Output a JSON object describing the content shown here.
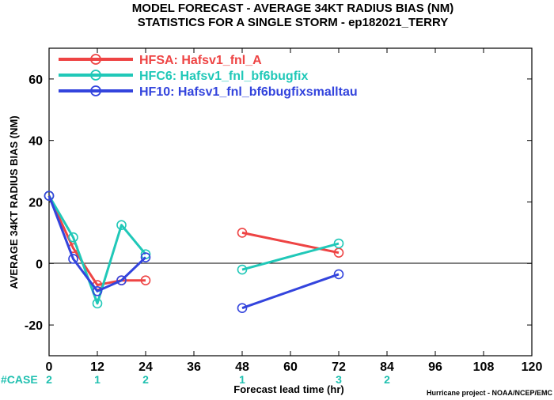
{
  "chart_data": {
    "type": "line",
    "title_line1": "MODEL FORECAST - AVERAGE 34KT RADIUS BIAS (NM)",
    "title_line2": "STATISTICS FOR A SINGLE STORM - ep182021_TERRY",
    "xlabel": "Forecast lead time (hr)",
    "ylabel": "AVERAGE 34KT RADIUS BIAS (NM)",
    "xlim": [
      0,
      120
    ],
    "ylim": [
      -30,
      70
    ],
    "x_ticks": [
      0,
      12,
      24,
      36,
      48,
      60,
      72,
      84,
      96,
      108,
      120
    ],
    "y_ticks": [
      -20,
      0,
      20,
      40,
      60
    ],
    "zero_line": true,
    "legend_placement": "top-left",
    "series": [
      {
        "name": "HFSA: Hafsv1_fnl_A",
        "color": "#ee4444",
        "segments": [
          [
            [
              0,
              22
            ],
            [
              6,
              5
            ],
            [
              12,
              -7
            ],
            [
              18,
              -5.5
            ],
            [
              24,
              -5.5
            ]
          ],
          [
            [
              48,
              10
            ],
            [
              72,
              3.5
            ]
          ]
        ]
      },
      {
        "name": "HFC6: Hafsv1_fnl_bf6bugfix",
        "color": "#20c8b8",
        "segments": [
          [
            [
              0,
              22
            ],
            [
              6,
              8.5
            ],
            [
              12,
              -13
            ],
            [
              18,
              12.5
            ],
            [
              24,
              3
            ]
          ],
          [
            [
              48,
              -2
            ],
            [
              72,
              6.5
            ]
          ]
        ]
      },
      {
        "name": "HF10: Hafsv1_fnl_bf6bugfixsmalltau",
        "color": "#3344dd",
        "segments": [
          [
            [
              0,
              22
            ],
            [
              6,
              1.5
            ],
            [
              12,
              -9
            ],
            [
              18,
              -5.5
            ],
            [
              24,
              2
            ]
          ],
          [
            [
              48,
              -14.5
            ],
            [
              72,
              -3.5
            ]
          ]
        ]
      }
    ],
    "case_label": "#CASE",
    "case_counts": [
      {
        "x": 0,
        "n": "2"
      },
      {
        "x": 12,
        "n": "1"
      },
      {
        "x": 24,
        "n": "2"
      },
      {
        "x": 48,
        "n": "1"
      },
      {
        "x": 72,
        "n": "3"
      },
      {
        "x": 84,
        "n": "2"
      }
    ],
    "credit": "Hurricane project - NOAA/NCEP/EMC"
  }
}
